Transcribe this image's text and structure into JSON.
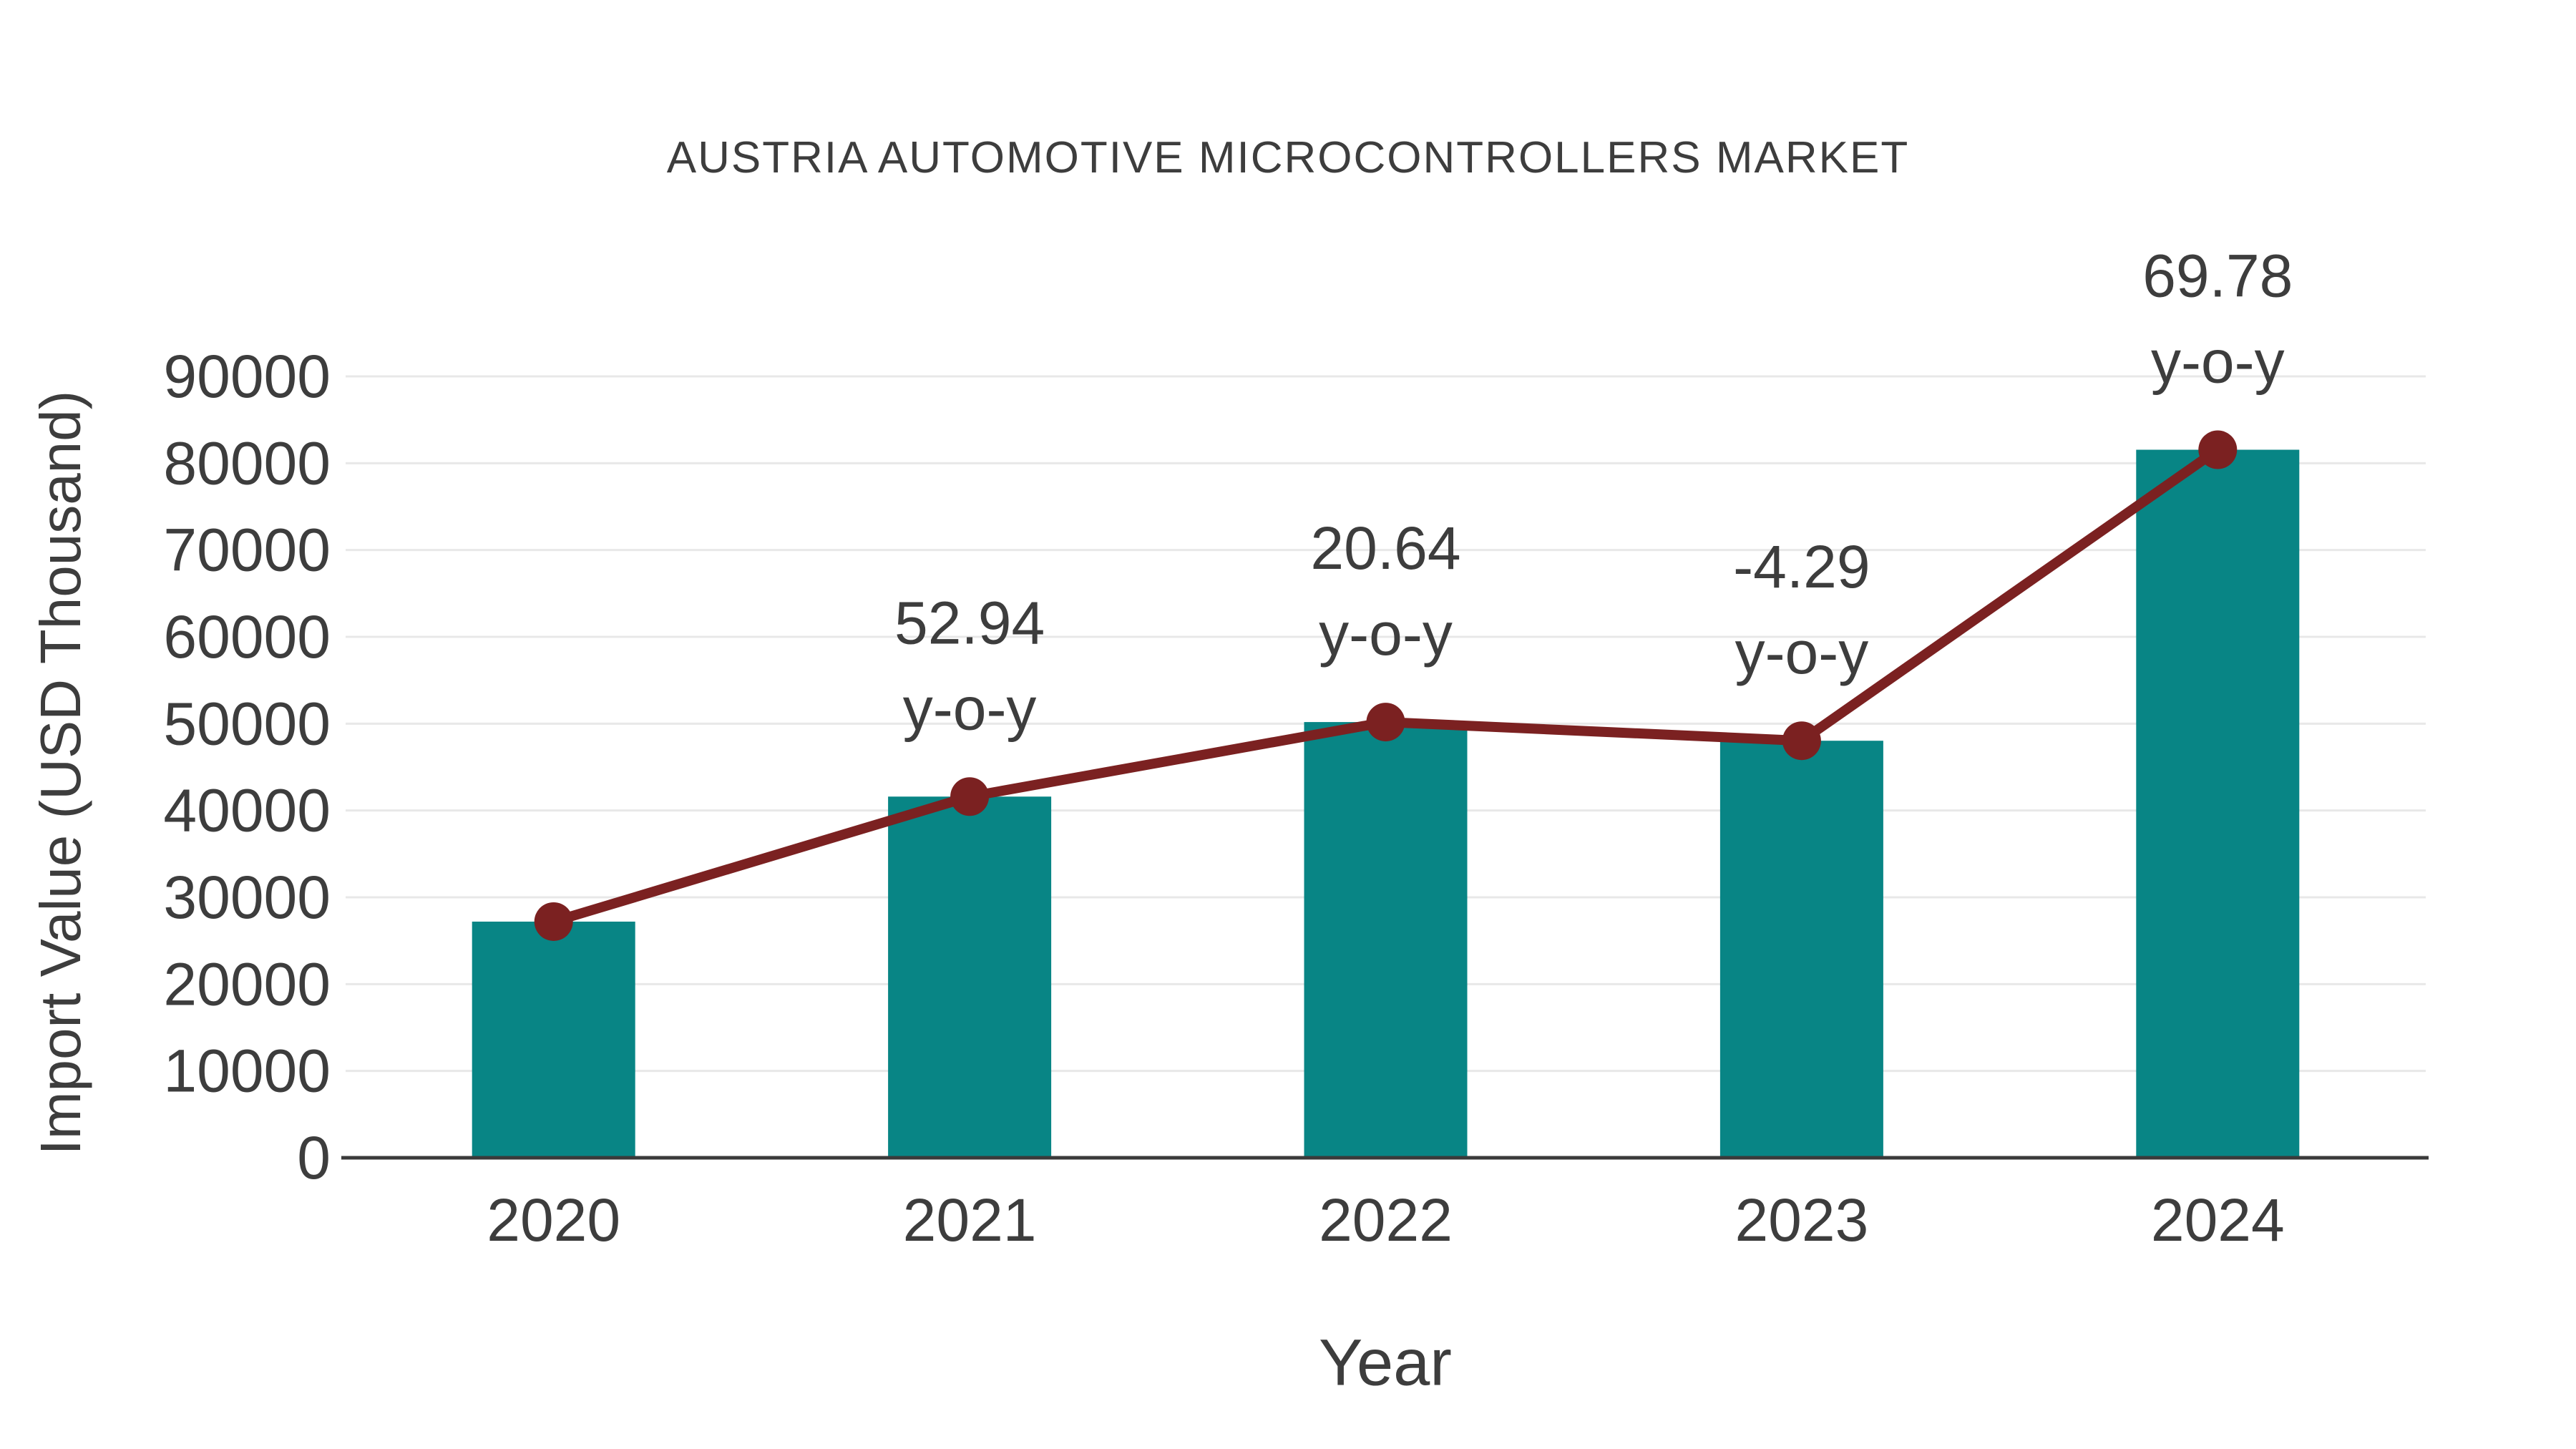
{
  "chart_data": {
    "type": "bar",
    "title": "AUSTRIA AUTOMOTIVE MICROCONTROLLERS MARKET",
    "xlabel": "Year",
    "ylabel": "Import Value (USD Thousand)",
    "categories": [
      "2020",
      "2021",
      "2022",
      "2023",
      "2024"
    ],
    "series": [
      {
        "name": "import-value-bars",
        "type": "bar",
        "values": [
          27200,
          41600,
          50186,
          48033,
          81551
        ]
      },
      {
        "name": "import-value-trend",
        "type": "line",
        "values": [
          27200,
          41600,
          50186,
          48033,
          81551
        ]
      }
    ],
    "annotations": [
      {
        "category": "2021",
        "line1": "52.94",
        "line2": "y-o-y"
      },
      {
        "category": "2022",
        "line1": "20.64",
        "line2": "y-o-y"
      },
      {
        "category": "2023",
        "line1": "-4.29",
        "line2": "y-o-y"
      },
      {
        "category": "2024",
        "line1": "69.78",
        "line2": "y-o-y"
      }
    ],
    "ylim": [
      0,
      90000
    ],
    "ytick_step": 10000,
    "yticks": [
      0,
      10000,
      20000,
      30000,
      40000,
      50000,
      60000,
      70000,
      80000,
      90000
    ],
    "grid": "horizontal",
    "legend_position": "none",
    "colors": {
      "bar": "#088585",
      "line": "#7b2121",
      "marker": "#7b2121",
      "text": "#3d3d3d",
      "grid": "#e8e8e8",
      "axis": "#3a3a3a",
      "background": "#ffffff"
    }
  }
}
